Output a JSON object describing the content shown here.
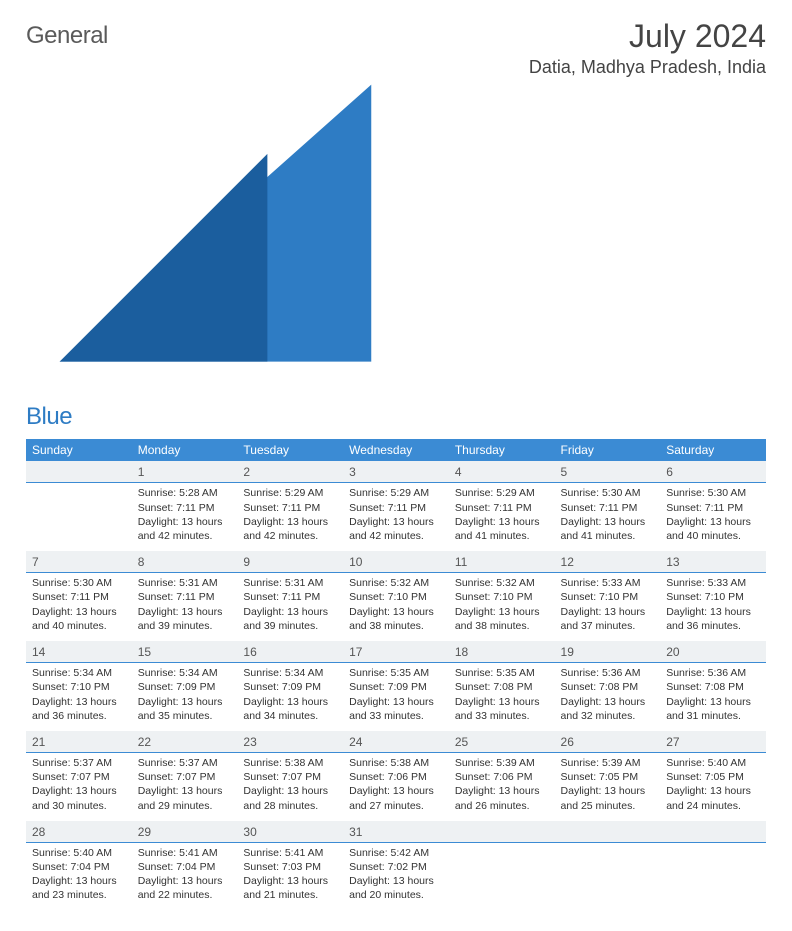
{
  "logo": {
    "part1": "General",
    "part2": "Blue"
  },
  "header": {
    "title": "July 2024",
    "location": "Datia, Madhya Pradesh, India"
  },
  "styling": {
    "header_bg": "#3b8bd4",
    "header_fg": "#ffffff",
    "daynum_bg": "#eef1f3",
    "daynum_border": "#3b8bd4",
    "title_fontsize": 32,
    "location_fontsize": 18,
    "th_fontsize": 12,
    "cell_fontsize": 10.5,
    "columns": 7
  },
  "weekdays": [
    "Sunday",
    "Monday",
    "Tuesday",
    "Wednesday",
    "Thursday",
    "Friday",
    "Saturday"
  ],
  "weeks": [
    {
      "nums": [
        "",
        "1",
        "2",
        "3",
        "4",
        "5",
        "6"
      ],
      "cells": [
        null,
        {
          "sr": "Sunrise: 5:28 AM",
          "ss": "Sunset: 7:11 PM",
          "dl": "Daylight: 13 hours and 42 minutes."
        },
        {
          "sr": "Sunrise: 5:29 AM",
          "ss": "Sunset: 7:11 PM",
          "dl": "Daylight: 13 hours and 42 minutes."
        },
        {
          "sr": "Sunrise: 5:29 AM",
          "ss": "Sunset: 7:11 PM",
          "dl": "Daylight: 13 hours and 42 minutes."
        },
        {
          "sr": "Sunrise: 5:29 AM",
          "ss": "Sunset: 7:11 PM",
          "dl": "Daylight: 13 hours and 41 minutes."
        },
        {
          "sr": "Sunrise: 5:30 AM",
          "ss": "Sunset: 7:11 PM",
          "dl": "Daylight: 13 hours and 41 minutes."
        },
        {
          "sr": "Sunrise: 5:30 AM",
          "ss": "Sunset: 7:11 PM",
          "dl": "Daylight: 13 hours and 40 minutes."
        }
      ]
    },
    {
      "nums": [
        "7",
        "8",
        "9",
        "10",
        "11",
        "12",
        "13"
      ],
      "cells": [
        {
          "sr": "Sunrise: 5:30 AM",
          "ss": "Sunset: 7:11 PM",
          "dl": "Daylight: 13 hours and 40 minutes."
        },
        {
          "sr": "Sunrise: 5:31 AM",
          "ss": "Sunset: 7:11 PM",
          "dl": "Daylight: 13 hours and 39 minutes."
        },
        {
          "sr": "Sunrise: 5:31 AM",
          "ss": "Sunset: 7:11 PM",
          "dl": "Daylight: 13 hours and 39 minutes."
        },
        {
          "sr": "Sunrise: 5:32 AM",
          "ss": "Sunset: 7:10 PM",
          "dl": "Daylight: 13 hours and 38 minutes."
        },
        {
          "sr": "Sunrise: 5:32 AM",
          "ss": "Sunset: 7:10 PM",
          "dl": "Daylight: 13 hours and 38 minutes."
        },
        {
          "sr": "Sunrise: 5:33 AM",
          "ss": "Sunset: 7:10 PM",
          "dl": "Daylight: 13 hours and 37 minutes."
        },
        {
          "sr": "Sunrise: 5:33 AM",
          "ss": "Sunset: 7:10 PM",
          "dl": "Daylight: 13 hours and 36 minutes."
        }
      ]
    },
    {
      "nums": [
        "14",
        "15",
        "16",
        "17",
        "18",
        "19",
        "20"
      ],
      "cells": [
        {
          "sr": "Sunrise: 5:34 AM",
          "ss": "Sunset: 7:10 PM",
          "dl": "Daylight: 13 hours and 36 minutes."
        },
        {
          "sr": "Sunrise: 5:34 AM",
          "ss": "Sunset: 7:09 PM",
          "dl": "Daylight: 13 hours and 35 minutes."
        },
        {
          "sr": "Sunrise: 5:34 AM",
          "ss": "Sunset: 7:09 PM",
          "dl": "Daylight: 13 hours and 34 minutes."
        },
        {
          "sr": "Sunrise: 5:35 AM",
          "ss": "Sunset: 7:09 PM",
          "dl": "Daylight: 13 hours and 33 minutes."
        },
        {
          "sr": "Sunrise: 5:35 AM",
          "ss": "Sunset: 7:08 PM",
          "dl": "Daylight: 13 hours and 33 minutes."
        },
        {
          "sr": "Sunrise: 5:36 AM",
          "ss": "Sunset: 7:08 PM",
          "dl": "Daylight: 13 hours and 32 minutes."
        },
        {
          "sr": "Sunrise: 5:36 AM",
          "ss": "Sunset: 7:08 PM",
          "dl": "Daylight: 13 hours and 31 minutes."
        }
      ]
    },
    {
      "nums": [
        "21",
        "22",
        "23",
        "24",
        "25",
        "26",
        "27"
      ],
      "cells": [
        {
          "sr": "Sunrise: 5:37 AM",
          "ss": "Sunset: 7:07 PM",
          "dl": "Daylight: 13 hours and 30 minutes."
        },
        {
          "sr": "Sunrise: 5:37 AM",
          "ss": "Sunset: 7:07 PM",
          "dl": "Daylight: 13 hours and 29 minutes."
        },
        {
          "sr": "Sunrise: 5:38 AM",
          "ss": "Sunset: 7:07 PM",
          "dl": "Daylight: 13 hours and 28 minutes."
        },
        {
          "sr": "Sunrise: 5:38 AM",
          "ss": "Sunset: 7:06 PM",
          "dl": "Daylight: 13 hours and 27 minutes."
        },
        {
          "sr": "Sunrise: 5:39 AM",
          "ss": "Sunset: 7:06 PM",
          "dl": "Daylight: 13 hours and 26 minutes."
        },
        {
          "sr": "Sunrise: 5:39 AM",
          "ss": "Sunset: 7:05 PM",
          "dl": "Daylight: 13 hours and 25 minutes."
        },
        {
          "sr": "Sunrise: 5:40 AM",
          "ss": "Sunset: 7:05 PM",
          "dl": "Daylight: 13 hours and 24 minutes."
        }
      ]
    },
    {
      "nums": [
        "28",
        "29",
        "30",
        "31",
        "",
        "",
        ""
      ],
      "cells": [
        {
          "sr": "Sunrise: 5:40 AM",
          "ss": "Sunset: 7:04 PM",
          "dl": "Daylight: 13 hours and 23 minutes."
        },
        {
          "sr": "Sunrise: 5:41 AM",
          "ss": "Sunset: 7:04 PM",
          "dl": "Daylight: 13 hours and 22 minutes."
        },
        {
          "sr": "Sunrise: 5:41 AM",
          "ss": "Sunset: 7:03 PM",
          "dl": "Daylight: 13 hours and 21 minutes."
        },
        {
          "sr": "Sunrise: 5:42 AM",
          "ss": "Sunset: 7:02 PM",
          "dl": "Daylight: 13 hours and 20 minutes."
        },
        null,
        null,
        null
      ]
    }
  ]
}
